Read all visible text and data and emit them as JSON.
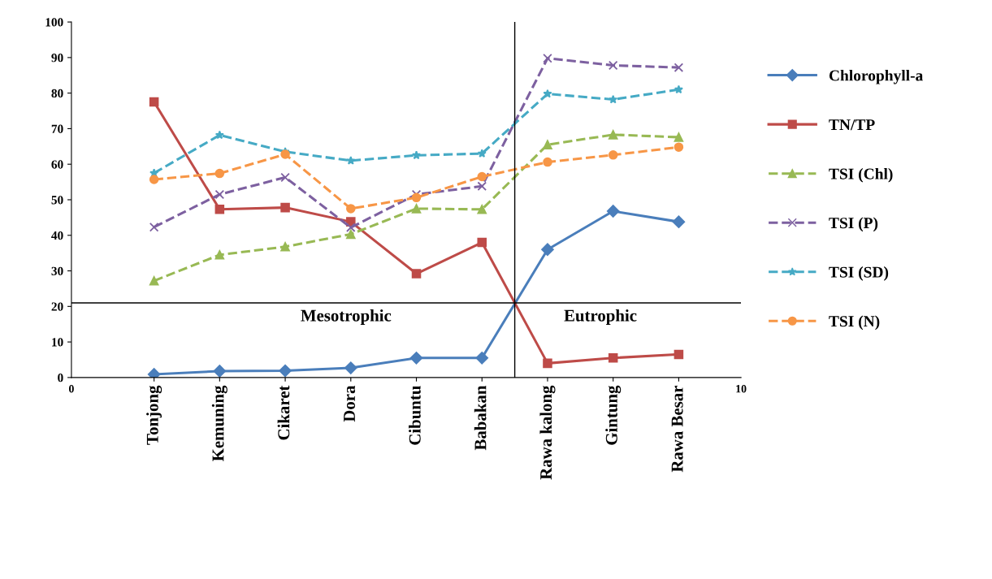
{
  "chart_data": {
    "type": "line",
    "categories": [
      "Tonjong",
      "Kemuning",
      "Cikaret",
      "Dora",
      "Cibuntu",
      "Babakan",
      "Rawa kalong",
      "Gintung",
      "Rawa Besar"
    ],
    "ylim": [
      0,
      100
    ],
    "yticks": [
      0,
      10,
      20,
      30,
      40,
      50,
      60,
      70,
      80,
      90,
      100
    ],
    "grid": false,
    "legend": "right",
    "series": [
      {
        "name": "Chlorophyll-a",
        "color": "#4a7ebb",
        "marker": "diamond",
        "line_style": "solid",
        "values": [
          0.9,
          1.8,
          1.9,
          2.7,
          5.5,
          5.5,
          36,
          46.8,
          43.8
        ]
      },
      {
        "name": "TN/TP",
        "color": "#be4b48",
        "marker": "square",
        "line_style": "solid",
        "values": [
          77.5,
          47.3,
          47.8,
          43.8,
          29.2,
          38,
          4,
          5.5,
          6.5
        ]
      },
      {
        "name": "TSI (Chl)",
        "color": "#98b954",
        "marker": "triangle",
        "line_style": "dashed",
        "values": [
          27.2,
          34.5,
          36.8,
          40.3,
          47.5,
          47.3,
          65.5,
          68.3,
          67.6
        ]
      },
      {
        "name": "TSI (P)",
        "color": "#7d60a0",
        "marker": "cross",
        "line_style": "dashed",
        "values": [
          42.3,
          51.5,
          56.3,
          42.2,
          51.5,
          53.8,
          89.8,
          87.8,
          87.2
        ]
      },
      {
        "name": "TSI (SD)",
        "color": "#46aac5",
        "marker": "star",
        "line_style": "dashed",
        "values": [
          57.5,
          68.2,
          63.5,
          61,
          62.5,
          63,
          79.8,
          78.2,
          81
        ]
      },
      {
        "name": "TSI (N)",
        "color": "#f79646",
        "marker": "circle",
        "line_style": "dashed",
        "values": [
          55.7,
          57.4,
          62.8,
          47.5,
          50.6,
          56.5,
          60.6,
          62.6,
          64.8
        ]
      }
    ],
    "ref_lines": [
      {
        "axis": "y",
        "value": 21,
        "color": "#000000"
      }
    ],
    "annotations": [
      "Mesotrophic",
      "Eutrophic",
      "0",
      "10"
    ]
  }
}
